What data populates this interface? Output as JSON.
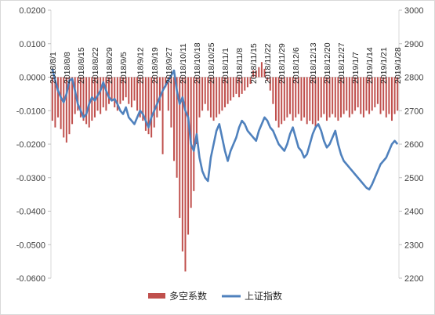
{
  "chart_data": {
    "type": "bar+line",
    "dual_axis": true,
    "left_axis": {
      "ylim": [
        -0.06,
        0.02
      ],
      "ticks": [
        "0.0200",
        "0.0100",
        "0.0000",
        "-0.0100",
        "-0.0200",
        "-0.0300",
        "-0.0400",
        "-0.0500",
        "-0.0600"
      ],
      "tick_values": [
        0.02,
        0.01,
        0.0,
        -0.01,
        -0.02,
        -0.03,
        -0.04,
        -0.05,
        -0.06
      ]
    },
    "right_axis": {
      "ylim": [
        2200,
        3000
      ],
      "ticks": [
        "3000",
        "2900",
        "2800",
        "2700",
        "2600",
        "2500",
        "2400",
        "2300",
        "2200"
      ],
      "tick_values": [
        3000,
        2900,
        2800,
        2700,
        2600,
        2500,
        2400,
        2300,
        2200
      ]
    },
    "x_date_labels": [
      "2018/8/1",
      "2018/8/8",
      "2018/8/15",
      "2018/8/22",
      "2018/8/29",
      "2018/9/5",
      "2018/9/12",
      "2018/9/19",
      "2018/9/27",
      "2018/10/11",
      "2018/10/18",
      "2018/10/25",
      "2018/11/1",
      "2018/11/8",
      "2018/11/15",
      "2018/11/22",
      "2018/11/29",
      "2018/12/6",
      "2018/12/13",
      "2018/12/20",
      "2018/12/27",
      "2019/1/7",
      "2019/1/14",
      "2019/1/21",
      "2019/1/28"
    ],
    "n_points": 123,
    "series": [
      {
        "name": "多空系数",
        "type": "bar",
        "axis": "left",
        "color": "#c0504d",
        "values": [
          -0.013,
          -0.015,
          -0.012,
          -0.0155,
          -0.018,
          -0.0195,
          -0.017,
          -0.014,
          -0.011,
          -0.01,
          -0.012,
          -0.013,
          -0.014,
          -0.015,
          -0.013,
          -0.012,
          -0.01,
          -0.011,
          -0.009,
          -0.01,
          -0.008,
          -0.007,
          -0.009,
          -0.01,
          -0.008,
          -0.007,
          -0.006,
          -0.008,
          -0.009,
          -0.007,
          -0.01,
          -0.012,
          -0.013,
          -0.016,
          -0.017,
          -0.018,
          -0.015,
          -0.012,
          -0.01,
          -0.023,
          -0.003,
          -0.01,
          -0.015,
          -0.025,
          -0.03,
          -0.042,
          -0.052,
          -0.058,
          -0.047,
          -0.039,
          -0.034,
          -0.02,
          -0.012,
          -0.01,
          -0.008,
          -0.01,
          -0.012,
          -0.013,
          -0.012,
          -0.011,
          -0.01,
          -0.009,
          -0.008,
          -0.007,
          -0.006,
          -0.005,
          -0.006,
          -0.005,
          -0.004,
          -0.003,
          -0.002,
          0.002,
          0.002,
          0.003,
          0.0045,
          0.0025,
          -0.001,
          -0.004,
          -0.008,
          -0.013,
          -0.015,
          -0.014,
          -0.013,
          -0.012,
          -0.011,
          -0.013,
          -0.012,
          -0.011,
          -0.013,
          -0.012,
          -0.014,
          -0.013,
          -0.014,
          -0.015,
          -0.013,
          -0.012,
          -0.011,
          -0.013,
          -0.012,
          -0.011,
          -0.012,
          -0.013,
          -0.012,
          -0.011,
          -0.01,
          -0.012,
          -0.011,
          -0.01,
          -0.009,
          -0.011,
          -0.012,
          -0.01,
          -0.011,
          -0.01,
          -0.009,
          -0.008,
          -0.011,
          -0.01,
          -0.012,
          -0.011,
          -0.013,
          -0.011,
          -0.01
        ]
      },
      {
        "name": "上证指数",
        "type": "line",
        "axis": "right",
        "color": "#4f81bd",
        "values": [
          2825,
          2790,
          2760,
          2740,
          2725,
          2750,
          2790,
          2795,
          2760,
          2720,
          2700,
          2680,
          2690,
          2720,
          2740,
          2730,
          2745,
          2760,
          2785,
          2760,
          2740,
          2730,
          2735,
          2720,
          2700,
          2690,
          2710,
          2680,
          2670,
          2660,
          2680,
          2700,
          2690,
          2670,
          2650,
          2680,
          2700,
          2720,
          2740,
          2760,
          2775,
          2790,
          2805,
          2820,
          2760,
          2720,
          2740,
          2700,
          2680,
          2600,
          2580,
          2630,
          2560,
          2520,
          2500,
          2490,
          2560,
          2600,
          2640,
          2660,
          2620,
          2580,
          2550,
          2580,
          2600,
          2620,
          2650,
          2670,
          2660,
          2640,
          2630,
          2620,
          2610,
          2640,
          2660,
          2680,
          2670,
          2650,
          2640,
          2620,
          2600,
          2590,
          2580,
          2600,
          2630,
          2650,
          2620,
          2590,
          2580,
          2560,
          2570,
          2600,
          2630,
          2650,
          2660,
          2640,
          2610,
          2590,
          2600,
          2620,
          2640,
          2600,
          2570,
          2550,
          2540,
          2530,
          2520,
          2510,
          2500,
          2490,
          2480,
          2470,
          2465,
          2480,
          2500,
          2520,
          2540,
          2550,
          2560,
          2580,
          2600,
          2610,
          2600
        ]
      }
    ],
    "legend": {
      "position": "bottom",
      "items": [
        "多空系数",
        "上证指数"
      ]
    }
  }
}
